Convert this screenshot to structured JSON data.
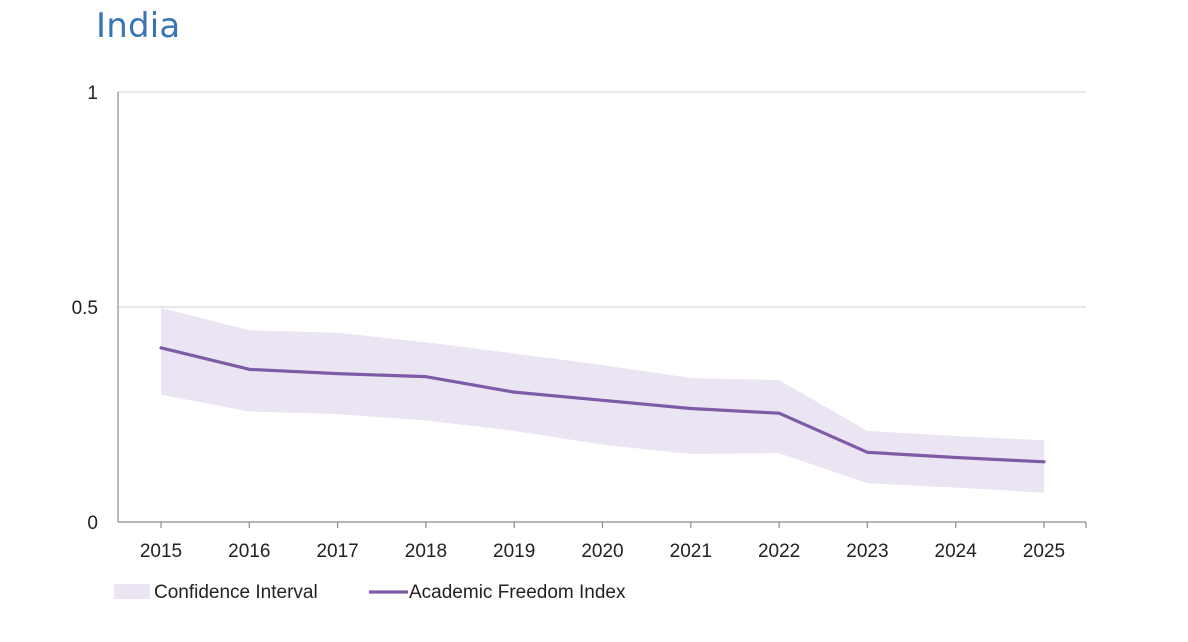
{
  "title": "India",
  "chart_data": {
    "type": "line",
    "x": [
      "2015",
      "2016",
      "2017",
      "2018",
      "2019",
      "2020",
      "2021",
      "2022",
      "2023",
      "2024",
      "2025"
    ],
    "series": [
      {
        "name": "Academic Freedom Index",
        "values": [
          0.405,
          0.355,
          0.345,
          0.338,
          0.302,
          0.283,
          0.264,
          0.253,
          0.162,
          0.15,
          0.14
        ],
        "color": "#7d5ba6"
      }
    ],
    "confidence_interval": {
      "name": "Confidence Interval",
      "lower": [
        0.296,
        0.257,
        0.251,
        0.236,
        0.212,
        0.18,
        0.158,
        0.16,
        0.09,
        0.08,
        0.068
      ],
      "upper": [
        0.498,
        0.446,
        0.44,
        0.418,
        0.392,
        0.365,
        0.335,
        0.33,
        0.212,
        0.2,
        0.19
      ],
      "color": "#ebe5f3"
    },
    "yticks": [
      0,
      0.5,
      1
    ],
    "ytick_labels": [
      "0",
      "0.5",
      "1"
    ],
    "ylim": [
      0,
      1
    ],
    "grid": true,
    "legend_position": "bottom-left",
    "xlabel": "",
    "ylabel": ""
  }
}
